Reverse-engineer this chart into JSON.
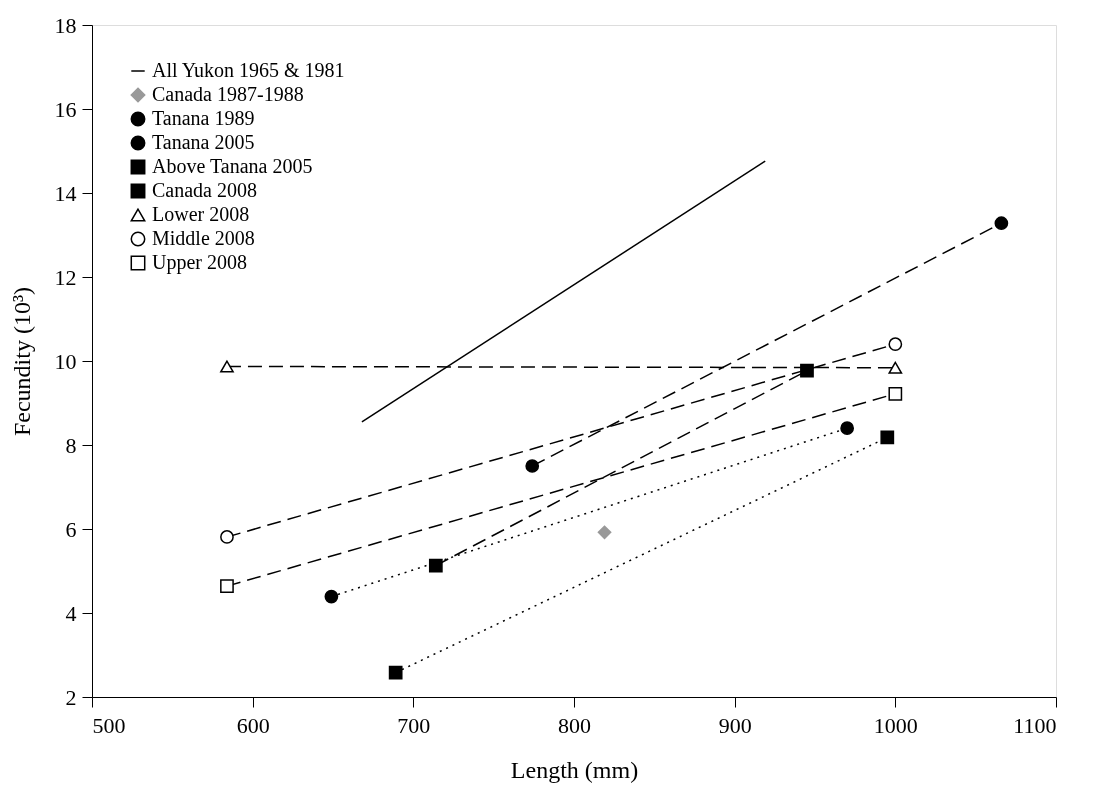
{
  "chart_data": {
    "type": "line",
    "xlabel": "Length (mm)",
    "ylabel": "Fecundity (10³)",
    "xlim": [
      500,
      1100
    ],
    "xticks": [
      500,
      600,
      700,
      800,
      900,
      1000,
      1100
    ],
    "ylim": [
      2,
      18
    ],
    "yticks": [
      2,
      4,
      6,
      8,
      10,
      12,
      14,
      16,
      18
    ],
    "grid": false,
    "legend": "top left",
    "series": [
      {
        "name": "All Yukon 1965 & 1981",
        "color": "#000000",
        "line_style": "solid",
        "marker": "none",
        "x": [
          668,
          919
        ],
        "values": [
          8.55,
          14.76
        ]
      },
      {
        "name": "Canada 1987-1988",
        "type": "scatter",
        "color": "#999999",
        "marker": "diamond",
        "x": [
          819
        ],
        "values": [
          5.92
        ]
      },
      {
        "name": "Tanana 1989",
        "color": "#000000",
        "line_style": "dashed",
        "marker": "circle",
        "x": [
          774,
          1066
        ],
        "values": [
          7.5,
          13.28
        ]
      },
      {
        "name": "Tanana 2005",
        "color": "#000000",
        "line_style": "dotted",
        "marker": "circle",
        "x": [
          649,
          970
        ],
        "values": [
          4.39,
          8.4
        ]
      },
      {
        "name": "Above Tanana 2005",
        "color": "#000000",
        "line_style": "dotted",
        "marker": "square",
        "x": [
          689,
          995
        ],
        "values": [
          2.58,
          8.18
        ]
      },
      {
        "name": "Canada 2008",
        "color": "#000000",
        "line_style": "dashed",
        "marker": "square",
        "x": [
          714,
          945
        ],
        "values": [
          5.13,
          9.77
        ]
      },
      {
        "name": "Lower 2008",
        "color": "#000000",
        "colors": [
          "#ffffff",
          "#ffffff"
        ],
        "line_style": "dashed",
        "marker": "triangle",
        "x": [
          584,
          1000
        ],
        "values": [
          9.87,
          9.84
        ]
      },
      {
        "name": "Middle 2008",
        "color": "#000000",
        "colors": [
          "#ffffff",
          "#ffffff"
        ],
        "line_style": "dashed",
        "marker": "circle",
        "x": [
          584,
          1000
        ],
        "values": [
          5.81,
          10.4
        ]
      },
      {
        "name": "Upper 2008",
        "color": "#000000",
        "colors": [
          "#ffffff",
          "#ffffff"
        ],
        "line_style": "dashed",
        "marker": "square",
        "x": [
          584,
          1000
        ],
        "values": [
          4.64,
          9.22
        ]
      }
    ]
  }
}
